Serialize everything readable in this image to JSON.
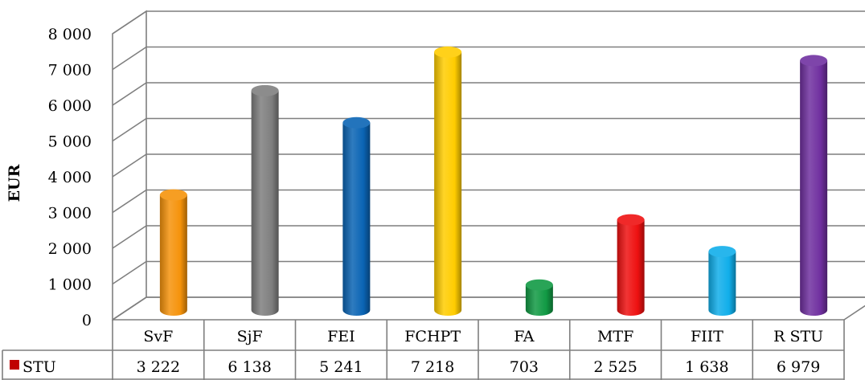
{
  "chart_data": {
    "type": "bar",
    "categories": [
      "SvF",
      "SjF",
      "FEI",
      "FCHPT",
      "FA",
      "MTF",
      "FIIT",
      "R STU"
    ],
    "series": [
      {
        "name": "STU",
        "values": [
          3222,
          6138,
          5241,
          7218,
          703,
          2525,
          1638,
          6979
        ],
        "value_labels": [
          "3 222",
          "6 138",
          "5 241",
          "7 218",
          "703",
          "2 525",
          "1 638",
          "6 979"
        ]
      }
    ],
    "bar_colors": [
      "#f5930b",
      "#7f7f7f",
      "#0a64b4",
      "#ffcc00",
      "#119a44",
      "#ee1111",
      "#10aeea",
      "#7030a0"
    ],
    "legend_color": "#c00000",
    "ylabel": "EUR",
    "ylim": [
      0,
      8000
    ],
    "yticks": [
      0,
      1000,
      2000,
      3000,
      4000,
      5000,
      6000,
      7000,
      8000
    ],
    "ytick_labels": [
      "0",
      "1 000",
      "2 000",
      "3 000",
      "4 000",
      "5 000",
      "6 000",
      "7 000",
      "8 000"
    ],
    "grid": true,
    "legend": "data-table",
    "style": "3d-cylinder"
  }
}
